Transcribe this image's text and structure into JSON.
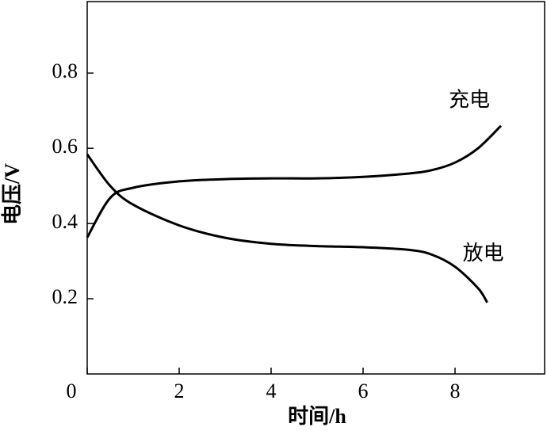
{
  "chart_data": {
    "type": "line",
    "xlabel": "时间/h",
    "ylabel": "电压/V",
    "xlim": [
      0,
      10
    ],
    "ylim": [
      0,
      0.99
    ],
    "xticks": [
      0,
      2,
      4,
      6,
      8
    ],
    "yticks": [
      0.2,
      0.4,
      0.6,
      0.8
    ],
    "series": [
      {
        "name": "充电",
        "color": "#000000",
        "x": [
          0,
          0.5,
          1,
          2,
          3,
          4,
          5,
          6,
          7,
          7.5,
          8,
          8.5,
          9
        ],
        "values": [
          0.363,
          0.468,
          0.495,
          0.512,
          0.518,
          0.52,
          0.52,
          0.524,
          0.533,
          0.542,
          0.562,
          0.6,
          0.66
        ]
      },
      {
        "name": "放电",
        "color": "#000000",
        "x": [
          0,
          0.5,
          1,
          2,
          3,
          4,
          5,
          6,
          7,
          7.5,
          8,
          8.5,
          8.7
        ],
        "values": [
          0.584,
          0.5,
          0.45,
          0.395,
          0.362,
          0.346,
          0.34,
          0.337,
          0.33,
          0.317,
          0.285,
          0.228,
          0.19
        ]
      }
    ]
  }
}
